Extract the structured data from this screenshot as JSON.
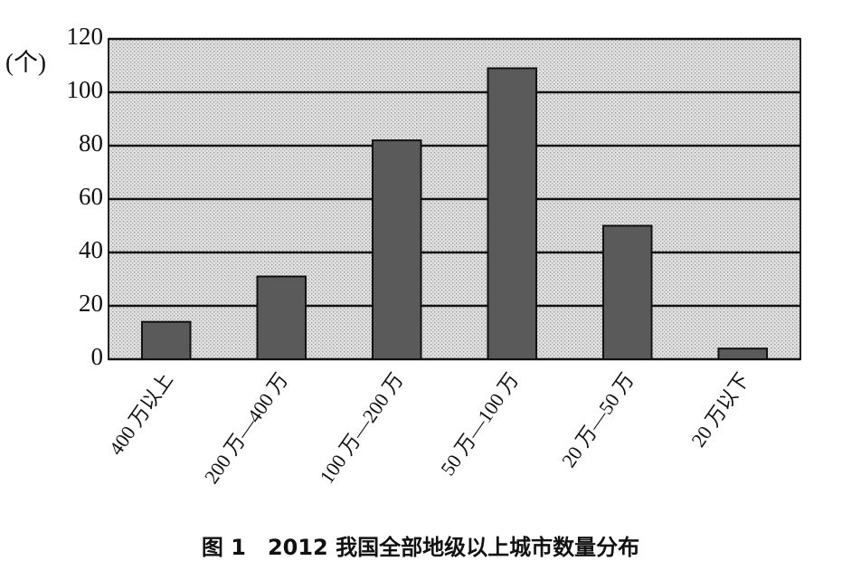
{
  "chart_data": {
    "type": "bar",
    "title": "图 1　2012 我国全部地级以上城市数量分布",
    "y_label": "(个)",
    "categories": [
      "400 万以上",
      "200 万—400 万",
      "100 万—200 万",
      "50 万—100 万",
      "20 万—50 万",
      "20 万以下"
    ],
    "values": [
      14,
      31,
      82,
      109,
      50,
      4
    ],
    "color": "#5a5a5a",
    "ylim": [
      0,
      120
    ],
    "yticks": [
      0,
      20,
      40,
      60,
      80,
      100,
      120
    ],
    "grid": true
  }
}
